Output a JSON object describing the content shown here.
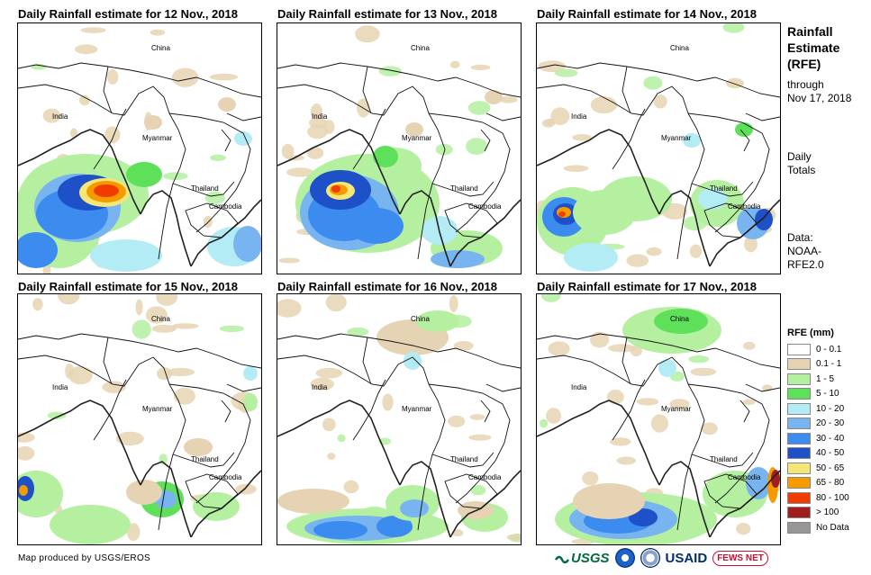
{
  "panels": [
    {
      "title": "Daily Rainfall estimate for 12 Nov., 2018"
    },
    {
      "title": "Daily Rainfall estimate for 13 Nov., 2018"
    },
    {
      "title": "Daily Rainfall estimate for 14 Nov., 2018"
    },
    {
      "title": "Daily Rainfall estimate for 15 Nov., 2018"
    },
    {
      "title": "Daily Rainfall estimate for 16 Nov., 2018"
    },
    {
      "title": "Daily Rainfall estimate for 17 Nov., 2018"
    }
  ],
  "map_labels": {
    "china": "China",
    "india": "India",
    "myanmar": "Myanmar",
    "thailand": "Thailand",
    "cambodia": "Cambodia"
  },
  "sidebar": {
    "title_line1": "Rainfall",
    "title_line2": "Estimate",
    "title_line3": "(RFE)",
    "through": "through",
    "date": "Nov 17, 2018",
    "daily": "Daily",
    "totals": "Totals",
    "data_label": "Data:",
    "source1": "NOAA-",
    "source2": "RFE2.0"
  },
  "legend": {
    "title": "RFE (mm)",
    "items": [
      {
        "label": "0 - 0.1",
        "color": "#ffffff"
      },
      {
        "label": "0.1 - 1",
        "color": "#e6d3b3"
      },
      {
        "label": "1 - 5",
        "color": "#b4f0a0"
      },
      {
        "label": "5 - 10",
        "color": "#5ee05a"
      },
      {
        "label": "10 - 20",
        "color": "#b4ecf5"
      },
      {
        "label": "20 - 30",
        "color": "#78b4f0"
      },
      {
        "label": "30 - 40",
        "color": "#3c8cf0"
      },
      {
        "label": "40 - 50",
        "color": "#1e50c8"
      },
      {
        "label": "50 - 65",
        "color": "#f5e678"
      },
      {
        "label": "65 - 80",
        "color": "#f59b00"
      },
      {
        "label": "80 - 100",
        "color": "#f03c00"
      },
      {
        "label": "> 100",
        "color": "#a01e1e"
      },
      {
        "label": "No Data",
        "color": "#969696"
      }
    ]
  },
  "footer": {
    "text": "Map produced by USGS/EROS"
  },
  "logos": {
    "usgs": "USGS",
    "usaid": "USAID",
    "fews": "FEWS NET"
  }
}
